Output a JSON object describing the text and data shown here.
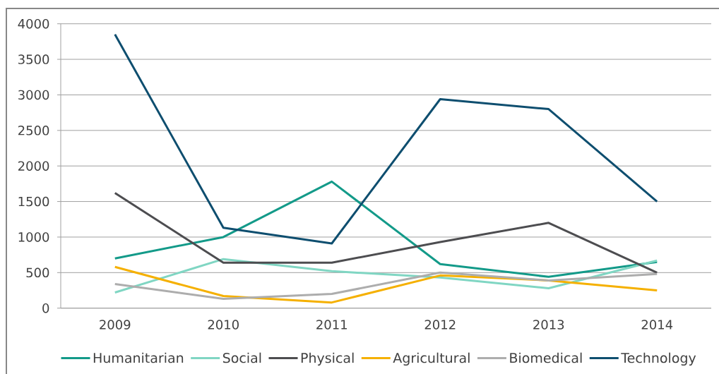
{
  "chart_data": {
    "type": "line",
    "categories": [
      "2009",
      "2010",
      "2011",
      "2012",
      "2013",
      "2014"
    ],
    "series": [
      {
        "name": "Humanitarian",
        "color": "#139a89",
        "values": [
          700,
          1000,
          1780,
          620,
          440,
          650
        ]
      },
      {
        "name": "Social",
        "color": "#80d6c3",
        "values": [
          220,
          690,
          520,
          430,
          280,
          670
        ]
      },
      {
        "name": "Physical",
        "color": "#4d4d50",
        "values": [
          1620,
          640,
          640,
          930,
          1200,
          500
        ]
      },
      {
        "name": "Agricultural",
        "color": "#f5b000",
        "values": [
          580,
          170,
          80,
          460,
          390,
          250
        ]
      },
      {
        "name": "Biomedical",
        "color": "#adadad",
        "values": [
          340,
          130,
          200,
          500,
          390,
          480
        ]
      },
      {
        "name": "Technology",
        "color": "#0e4e6f",
        "values": [
          3850,
          1130,
          910,
          2940,
          2800,
          1500
        ]
      }
    ],
    "ylim": [
      0,
      4000
    ],
    "yticks": [
      0,
      500,
      1000,
      1500,
      2000,
      2500,
      3000,
      3500,
      4000
    ],
    "grid": "y",
    "legend": "bottom",
    "marker": "none",
    "line_style": "solid"
  }
}
